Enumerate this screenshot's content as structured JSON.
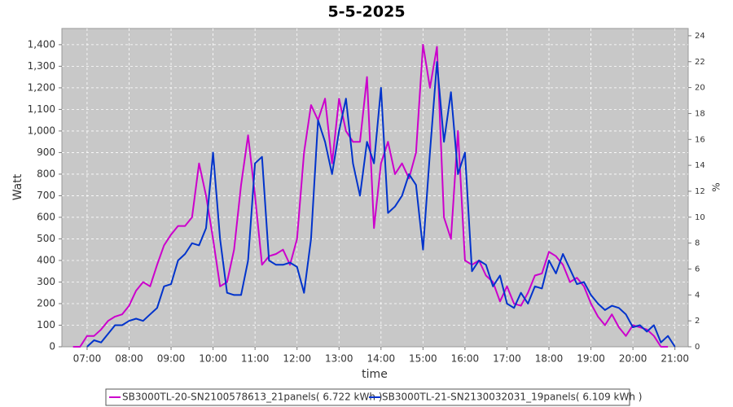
{
  "chart_data": {
    "type": "line",
    "title": "5-5-2025",
    "xlabel": "time",
    "ylabel": "Watt",
    "y2label": "%",
    "x": [
      "06:40",
      "06:50",
      "07:00",
      "07:10",
      "07:20",
      "07:30",
      "07:40",
      "07:50",
      "08:00",
      "08:10",
      "08:20",
      "08:30",
      "08:40",
      "08:50",
      "09:00",
      "09:10",
      "09:20",
      "09:30",
      "09:40",
      "09:50",
      "10:00",
      "10:10",
      "10:20",
      "10:30",
      "10:40",
      "10:50",
      "11:00",
      "11:10",
      "11:20",
      "11:30",
      "11:40",
      "11:50",
      "12:00",
      "12:10",
      "12:20",
      "12:30",
      "12:40",
      "12:50",
      "13:00",
      "13:10",
      "13:20",
      "13:30",
      "13:40",
      "13:50",
      "14:00",
      "14:10",
      "14:20",
      "14:30",
      "14:40",
      "14:50",
      "15:00",
      "15:10",
      "15:20",
      "15:30",
      "15:40",
      "15:50",
      "16:00",
      "16:10",
      "16:20",
      "16:30",
      "16:40",
      "16:50",
      "17:00",
      "17:10",
      "17:20",
      "17:30",
      "17:40",
      "17:50",
      "18:00",
      "18:10",
      "18:20",
      "18:30",
      "18:40",
      "18:50",
      "19:00",
      "19:10",
      "19:20",
      "19:30",
      "19:40",
      "19:50",
      "20:00",
      "20:10",
      "20:20",
      "20:30",
      "20:40",
      "20:50",
      "21:00"
    ],
    "series": [
      {
        "name": "SB3000TL-20-SN2100578613_21panels( 6.722 kWh )",
        "color": "#cc00cc",
        "values": [
          0,
          0,
          50,
          50,
          80,
          120,
          140,
          150,
          190,
          260,
          300,
          280,
          380,
          470,
          520,
          560,
          560,
          600,
          850,
          700,
          500,
          280,
          300,
          450,
          750,
          980,
          700,
          380,
          420,
          430,
          450,
          380,
          500,
          900,
          1120,
          1050,
          1150,
          850,
          1150,
          1000,
          950,
          950,
          1250,
          550,
          850,
          950,
          800,
          850,
          780,
          900,
          1400,
          1200,
          1390,
          600,
          500,
          1000,
          400,
          380,
          400,
          330,
          300,
          210,
          280,
          200,
          190,
          250,
          330,
          340,
          440,
          420,
          380,
          300,
          320,
          280,
          200,
          140,
          100,
          150,
          90,
          50,
          100,
          90,
          80,
          50,
          0,
          0,
          null
        ]
      },
      {
        "name": "SB3000TL-21-SN2130032031_19panels( 6.109 kWh )",
        "color": "#0033cc",
        "values": [
          null,
          null,
          0,
          30,
          20,
          60,
          100,
          100,
          120,
          130,
          120,
          150,
          180,
          280,
          290,
          400,
          430,
          480,
          470,
          550,
          900,
          500,
          250,
          240,
          240,
          400,
          850,
          880,
          400,
          380,
          380,
          390,
          370,
          250,
          500,
          1050,
          950,
          800,
          1000,
          1150,
          850,
          700,
          950,
          850,
          1200,
          620,
          650,
          700,
          800,
          750,
          450,
          900,
          1320,
          950,
          1180,
          800,
          900,
          350,
          400,
          380,
          280,
          330,
          200,
          180,
          250,
          200,
          280,
          270,
          400,
          340,
          430,
          360,
          290,
          300,
          240,
          200,
          170,
          190,
          180,
          150,
          90,
          100,
          70,
          100,
          20,
          50,
          0
        ]
      }
    ],
    "xlim": [
      "06:24",
      "21:19"
    ],
    "xticks": [
      "07:00",
      "08:00",
      "09:00",
      "10:00",
      "11:00",
      "12:00",
      "13:00",
      "14:00",
      "15:00",
      "16:00",
      "17:00",
      "18:00",
      "19:00",
      "20:00",
      "21:00"
    ],
    "ylim": [
      0,
      1475
    ],
    "yticks": [
      0,
      100,
      200,
      300,
      400,
      500,
      600,
      700,
      800,
      900,
      {
        "value": 1000,
        "label": "1,000"
      },
      {
        "value": 1100,
        "label": "1,100"
      },
      {
        "value": 1200,
        "label": "1,200"
      },
      {
        "value": 1300,
        "label": "1,300"
      },
      {
        "value": 1400,
        "label": "1,400"
      }
    ],
    "y2lim": [
      0,
      24.56
    ],
    "y2ticks": [
      0,
      2,
      4,
      6,
      8,
      10,
      12,
      14,
      16,
      18,
      20,
      22,
      24
    ],
    "grid": true,
    "legend": "bottom"
  }
}
